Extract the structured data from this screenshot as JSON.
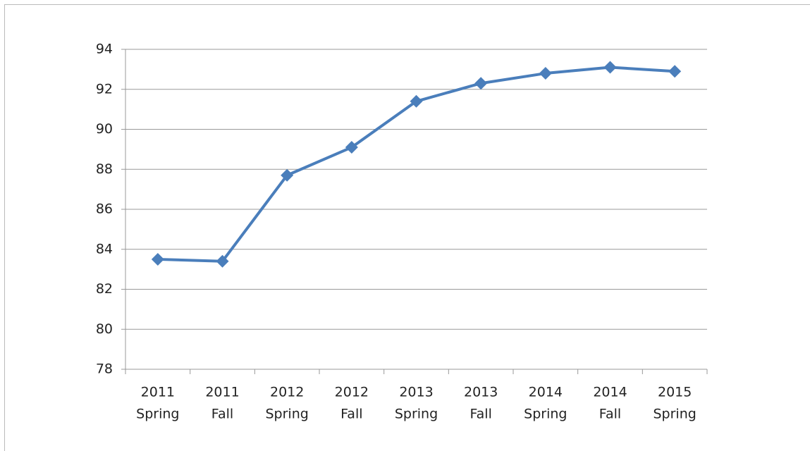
{
  "chart_data": {
    "type": "line",
    "categories": [
      [
        "2011",
        "Spring"
      ],
      [
        "2011",
        "Fall"
      ],
      [
        "2012",
        "Spring"
      ],
      [
        "2012",
        "Fall"
      ],
      [
        "2013",
        "Spring"
      ],
      [
        "2013",
        "Fall"
      ],
      [
        "2014",
        "Spring"
      ],
      [
        "2014",
        "Fall"
      ],
      [
        "2015",
        "Spring"
      ]
    ],
    "series": [
      {
        "color": "#4a7ebb",
        "values": [
          83.5,
          83.4,
          87.7,
          89.1,
          91.4,
          92.3,
          92.8,
          93.1,
          92.9
        ]
      }
    ],
    "ylim": [
      78,
      94
    ],
    "yticks": [
      78,
      80,
      82,
      84,
      86,
      88,
      90,
      92,
      94
    ],
    "grid": true
  }
}
